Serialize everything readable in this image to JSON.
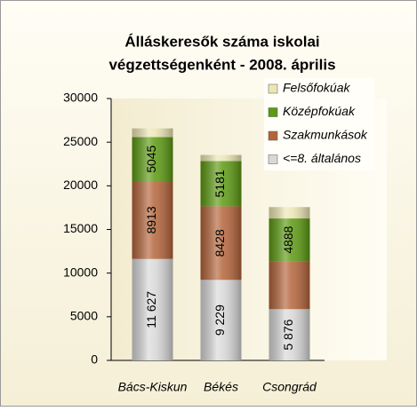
{
  "chart_data": {
    "type": "stacked_bar",
    "title": [
      "Álláskeresők száma iskolai",
      "végzettségenként - 2008. április"
    ],
    "categories": [
      "Bács-Kiskun",
      "Békés",
      "Csongrád"
    ],
    "series": [
      {
        "name": "<=8. általános",
        "color": "#d8d8d8",
        "values": [
          11627,
          9229,
          5876
        ],
        "value_labels": [
          "11 627",
          "9 229",
          "5 876"
        ]
      },
      {
        "name": "Szakmunkások",
        "color": "#b4643a",
        "values": [
          8913,
          8428,
          5500
        ],
        "value_labels": [
          "8913",
          "8428",
          null
        ]
      },
      {
        "name": "Középfokúak",
        "color": "#5c9a12",
        "values": [
          5045,
          5181,
          4888
        ],
        "value_labels": [
          "5045",
          "5181",
          "4888"
        ]
      },
      {
        "name": "Felsőfokúak",
        "color": "#ece6b4",
        "values": [
          1000,
          700,
          1300
        ]
      }
    ],
    "ylim": [
      0,
      30000
    ],
    "yticks": [
      0,
      5000,
      10000,
      15000,
      20000,
      25000,
      30000
    ],
    "legend": "top-right",
    "grid": false
  }
}
